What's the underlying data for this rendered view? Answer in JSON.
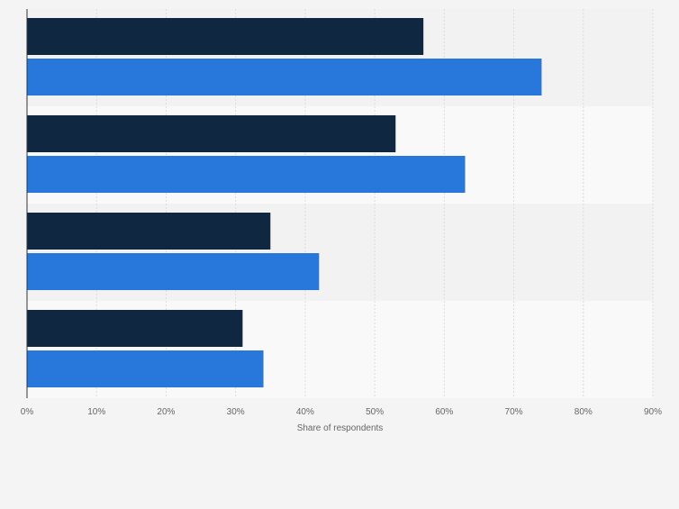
{
  "colors": {
    "page_background": "#f4f4f4",
    "band_dark": "#f2f2f2",
    "band_light": "#f9f9f9",
    "gridline": "#dcdcdc",
    "axis_line": "#333333",
    "tick_text": "#666666",
    "series_1": "#0f2741",
    "series_2": "#2878dc"
  },
  "chart_data": {
    "type": "bar",
    "orientation": "horizontal",
    "title": "",
    "xlabel": "Share of respondents",
    "ylabel": "",
    "xlim": [
      0,
      90
    ],
    "x_ticks": [
      "0%",
      "10%",
      "20%",
      "30%",
      "40%",
      "50%",
      "60%",
      "70%",
      "80%",
      "90%"
    ],
    "categories": [
      "",
      "",
      "",
      ""
    ],
    "series": [
      {
        "name": "",
        "color": "#0f2741",
        "values": [
          57,
          53,
          35,
          31
        ]
      },
      {
        "name": "",
        "color": "#2878dc",
        "values": [
          74,
          63,
          42,
          34
        ]
      }
    ],
    "grid": true,
    "legend": "none"
  }
}
